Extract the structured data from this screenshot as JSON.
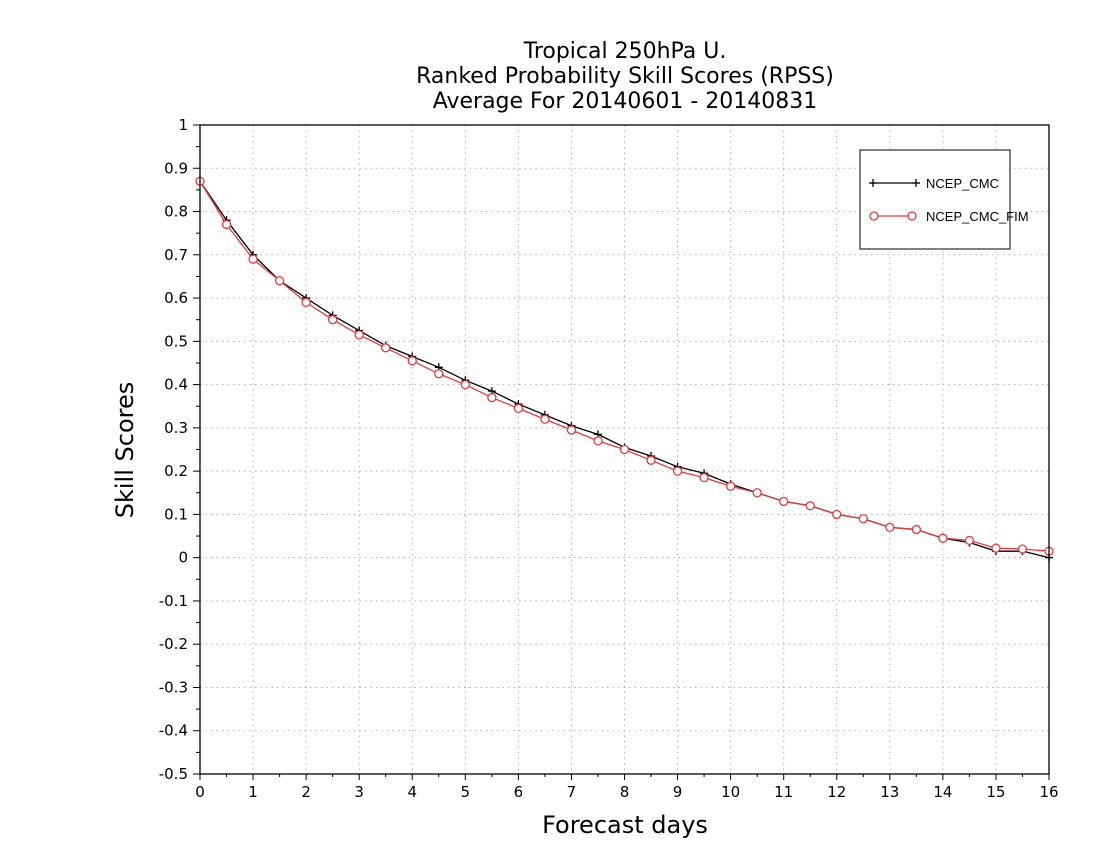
{
  "chart_data": {
    "type": "line",
    "title": [
      "Tropical 250hPa U.",
      "Ranked Probability Skill Scores (RPSS)",
      "Average For 20140601 - 20140831"
    ],
    "xlabel": "Forecast days",
    "ylabel": "Skill Scores",
    "xlim": [
      0,
      16
    ],
    "ylim": [
      -0.5,
      1
    ],
    "xticks": [
      0,
      1,
      2,
      3,
      4,
      5,
      6,
      7,
      8,
      9,
      10,
      11,
      12,
      13,
      14,
      15,
      16
    ],
    "xtick_labels": [
      "0",
      "1",
      "2",
      "3",
      "4",
      "5",
      "6",
      "7",
      "8",
      "9",
      "10",
      "11",
      "12",
      "13",
      "14",
      "15",
      "16"
    ],
    "yticks": [
      -0.5,
      -0.4,
      -0.3,
      -0.2,
      -0.1,
      0,
      0.1,
      0.2,
      0.3,
      0.4,
      0.5,
      0.6,
      0.7,
      0.8,
      0.9,
      1
    ],
    "ytick_labels": [
      "-0.5",
      "-0.4",
      "-0.3",
      "-0.2",
      "-0.1",
      "0",
      "0.1",
      "0.2",
      "0.3",
      "0.4",
      "0.5",
      "0.6",
      "0.7",
      "0.8",
      "0.9",
      "1"
    ],
    "grid": true,
    "legend_position": "top-right",
    "x": [
      0,
      0.5,
      1,
      1.5,
      2,
      2.5,
      3,
      3.5,
      4,
      4.5,
      5,
      5.5,
      6,
      6.5,
      7,
      7.5,
      8,
      8.5,
      9,
      9.5,
      10,
      10.5,
      11,
      11.5,
      12,
      12.5,
      13,
      13.5,
      14,
      14.5,
      15,
      15.5,
      16
    ],
    "series": [
      {
        "name": "NCEP_CMC",
        "color": "#000000",
        "marker": "plus",
        "values": [
          0.87,
          0.78,
          0.7,
          0.64,
          0.6,
          0.56,
          0.525,
          0.49,
          0.465,
          0.44,
          0.41,
          0.385,
          0.355,
          0.33,
          0.305,
          0.285,
          0.255,
          0.235,
          0.21,
          0.195,
          0.17,
          0.15,
          0.13,
          0.12,
          0.1,
          0.09,
          0.07,
          0.065,
          0.045,
          0.035,
          0.015,
          0.015,
          0.0
        ]
      },
      {
        "name": "NCEP_CMC_FIM",
        "color": "#e8393c",
        "marker": "circle",
        "values": [
          0.87,
          0.77,
          0.69,
          0.64,
          0.59,
          0.55,
          0.515,
          0.485,
          0.455,
          0.425,
          0.4,
          0.37,
          0.345,
          0.32,
          0.295,
          0.27,
          0.25,
          0.225,
          0.2,
          0.185,
          0.165,
          0.15,
          0.13,
          0.12,
          0.1,
          0.09,
          0.07,
          0.065,
          0.045,
          0.04,
          0.022,
          0.02,
          0.015
        ]
      }
    ]
  }
}
